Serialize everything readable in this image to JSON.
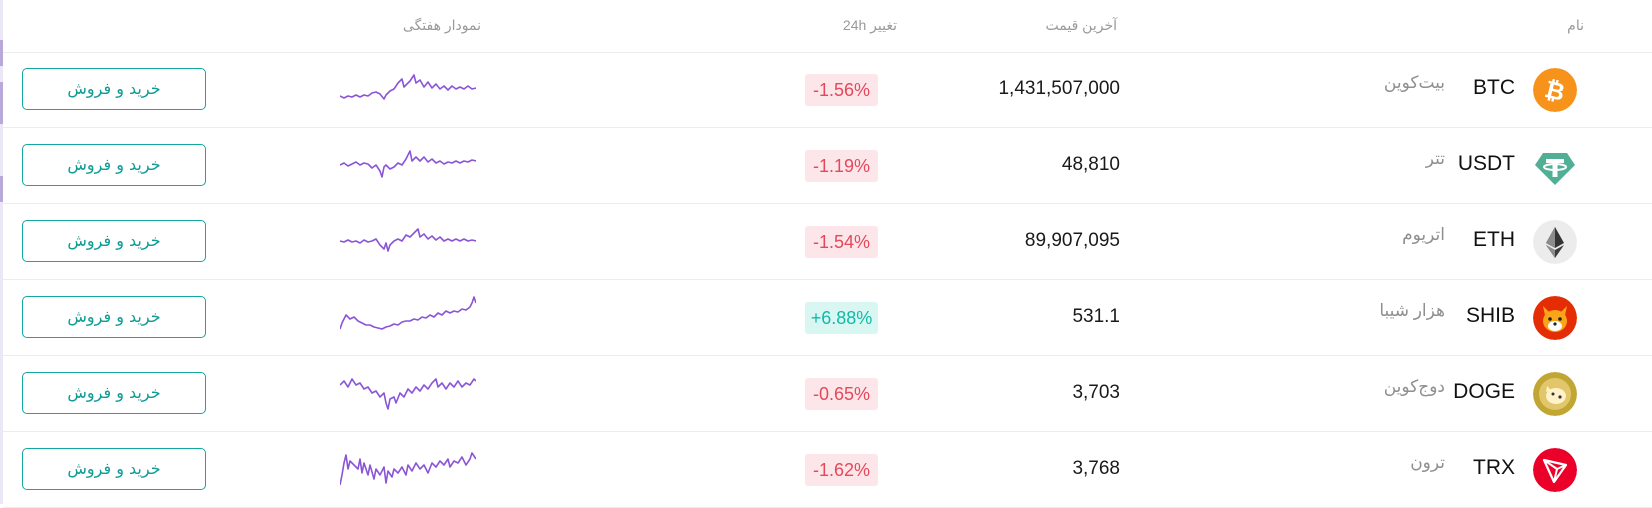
{
  "header": {
    "name": "نام",
    "last_price": "آخرین قیمت",
    "change_24h": "تغییر 24h",
    "weekly_chart": "نمودار هفتگی"
  },
  "colors": {
    "positive": "#14b8a6",
    "negative": "#e5485a",
    "sparkline": "#8a55d6",
    "button": "#13a8a2"
  },
  "rows": [
    {
      "symbol": "BTC",
      "name_fa": "بیت‌کوین",
      "price": "1,431,507,000",
      "change": "-1.56%",
      "direction": "down",
      "icon": "bitcoin-icon",
      "trade_label": "خرید و فروش"
    },
    {
      "symbol": "USDT",
      "name_fa": "تتر",
      "price": "48,810",
      "change": "-1.19%",
      "direction": "down",
      "icon": "tether-icon",
      "trade_label": "خرید و فروش"
    },
    {
      "symbol": "ETH",
      "name_fa": "اتریوم",
      "price": "89,907,095",
      "change": "-1.54%",
      "direction": "down",
      "icon": "ethereum-icon",
      "trade_label": "خرید و فروش"
    },
    {
      "symbol": "SHIB",
      "name_fa": "هزار شیبا",
      "price": "531.1",
      "change": "+6.88%",
      "direction": "up",
      "icon": "shiba-inu-icon",
      "trade_label": "خرید و فروش"
    },
    {
      "symbol": "DOGE",
      "name_fa": "دوج‌کوین",
      "price": "3,703",
      "change": "-0.65%",
      "direction": "down",
      "icon": "dogecoin-icon",
      "trade_label": "خرید و فروش"
    },
    {
      "symbol": "TRX",
      "name_fa": "ترون",
      "price": "3,768",
      "change": "-1.62%",
      "direction": "down",
      "icon": "tron-icon",
      "trade_label": "خرید و فروش"
    }
  ]
}
